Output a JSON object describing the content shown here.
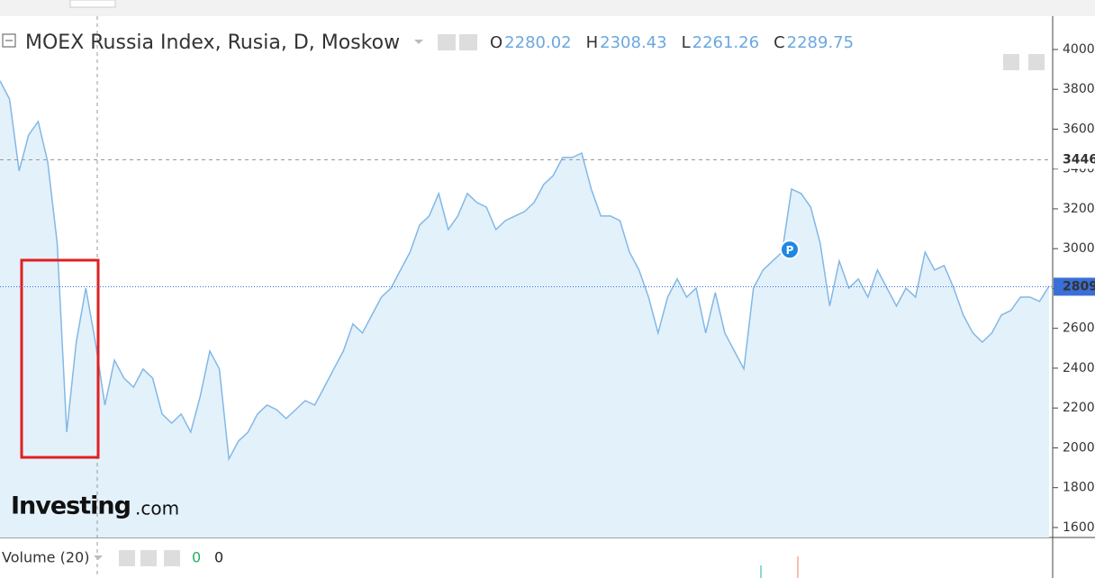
{
  "chart_data": {
    "type": "area",
    "title": "MOEX Russia Index, Rusia, D, Moskow",
    "ohlc": [
      {
        "label": "O",
        "value": 2280.02
      },
      {
        "label": "H",
        "value": 2308.43
      },
      {
        "label": "L",
        "value": 2261.26
      },
      {
        "label": "C",
        "value": 2289.75
      }
    ],
    "color": "#82b8e6",
    "values": [
      3842,
      3751,
      3390,
      3571,
      3638,
      3435,
      3028,
      2079,
      2531,
      2802,
      2531,
      2215,
      2440,
      2350,
      2305,
      2396,
      2350,
      2170,
      2124,
      2170,
      2079,
      2260,
      2486,
      2396,
      1944,
      2034,
      2079,
      2170,
      2215,
      2192,
      2147,
      2192,
      2237,
      2215,
      2305,
      2396,
      2486,
      2622,
      2577,
      2667,
      2757,
      2802,
      2893,
      2983,
      3119,
      3164,
      3277,
      3096,
      3164,
      3277,
      3232,
      3209,
      3096,
      3141,
      3164,
      3186,
      3232,
      3322,
      3367,
      3458,
      3458,
      3480,
      3299,
      3164,
      3164,
      3141,
      2983,
      2893,
      2757,
      2577,
      2757,
      2848,
      2757,
      2802,
      2577,
      2780,
      2577,
      2486,
      2396,
      2802,
      2893,
      2938,
      2983,
      3299,
      3277,
      3209,
      3028,
      2712,
      2938,
      2802,
      2848,
      2757,
      2893,
      2802,
      2712,
      2802,
      2757,
      2983,
      2893,
      2915,
      2802,
      2667,
      2577,
      2531,
      2577,
      2667,
      2690,
      2757,
      2757,
      2735,
      2812
    ],
    "ylim": [
      1550,
      4167
    ],
    "yticks": [
      1600,
      1800,
      2000,
      2200,
      2400,
      2600,
      2800,
      3000,
      3200,
      3400,
      3600,
      3800,
      4000
    ],
    "price_lines": [
      {
        "value": 3446,
        "color": "#999999"
      },
      {
        "value": 2809,
        "color": "#3a6fd8"
      }
    ],
    "marker": {
      "label": "P",
      "value": 2995
    },
    "brand": {
      "name": "Investing",
      "suffix": ".com"
    },
    "volume": {
      "title": "Volume (20)",
      "values": [
        0,
        0
      ]
    }
  }
}
